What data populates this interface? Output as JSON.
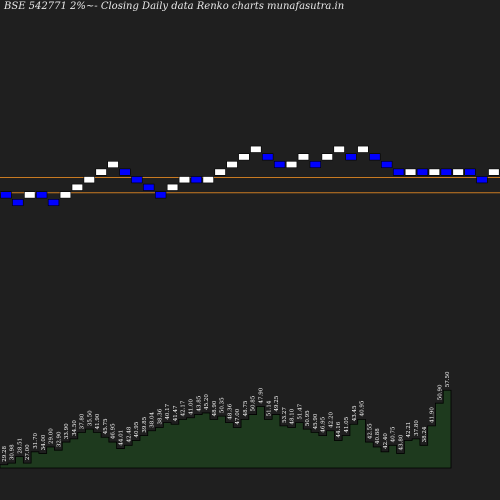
{
  "chart_data": {
    "type": "renko",
    "title": "BSE 542771 2%~- Closing Daily data  Renko  charts munafasutra.in",
    "colors": {
      "background": "#1f1f1f",
      "up_brick": "#ffffff",
      "down_brick": "#0000ff",
      "brick_edge": "#000000",
      "reference_line": "#c87a22",
      "volume_fill": "#1e3a1e",
      "volume_line": "#000000",
      "label": "#ffffff"
    },
    "reference_lines": [
      {
        "level": 0
      },
      {
        "level": -2
      }
    ],
    "bricks": [
      {
        "dir": "down",
        "level": -2
      },
      {
        "dir": "down",
        "level": -3
      },
      {
        "dir": "up",
        "level": -2
      },
      {
        "dir": "down",
        "level": -2
      },
      {
        "dir": "down",
        "level": -3
      },
      {
        "dir": "up",
        "level": -2
      },
      {
        "dir": "up",
        "level": -1
      },
      {
        "dir": "up",
        "level": 0
      },
      {
        "dir": "up",
        "level": 1
      },
      {
        "dir": "up",
        "level": 2
      },
      {
        "dir": "down",
        "level": 1
      },
      {
        "dir": "down",
        "level": 0
      },
      {
        "dir": "down",
        "level": -1
      },
      {
        "dir": "down",
        "level": -2
      },
      {
        "dir": "up",
        "level": -1
      },
      {
        "dir": "up",
        "level": 0
      },
      {
        "dir": "down",
        "level": 0
      },
      {
        "dir": "up",
        "level": 0
      },
      {
        "dir": "up",
        "level": 1
      },
      {
        "dir": "up",
        "level": 2
      },
      {
        "dir": "up",
        "level": 3
      },
      {
        "dir": "up",
        "level": 4
      },
      {
        "dir": "down",
        "level": 3
      },
      {
        "dir": "down",
        "level": 2
      },
      {
        "dir": "up",
        "level": 2
      },
      {
        "dir": "up",
        "level": 3
      },
      {
        "dir": "down",
        "level": 2
      },
      {
        "dir": "up",
        "level": 3
      },
      {
        "dir": "up",
        "level": 4
      },
      {
        "dir": "down",
        "level": 3
      },
      {
        "dir": "up",
        "level": 4
      },
      {
        "dir": "down",
        "level": 3
      },
      {
        "dir": "down",
        "level": 2
      },
      {
        "dir": "down",
        "level": 1
      },
      {
        "dir": "up",
        "level": 1
      },
      {
        "dir": "down",
        "level": 1
      },
      {
        "dir": "up",
        "level": 1
      },
      {
        "dir": "down",
        "level": 1
      },
      {
        "dir": "up",
        "level": 1
      },
      {
        "dir": "down",
        "level": 1
      },
      {
        "dir": "down",
        "level": 0
      },
      {
        "dir": "up",
        "level": 1
      },
      {
        "dir": "down",
        "level": 1
      },
      {
        "dir": "up",
        "level": 1
      },
      {
        "dir": "up",
        "level": 2
      },
      {
        "dir": "up",
        "level": 3
      },
      {
        "dir": "up",
        "level": 4
      },
      {
        "dir": "up",
        "level": 5
      }
    ],
    "volume": {
      "values": [
        2,
        3,
        7,
        3,
        10,
        9,
        13,
        11,
        16,
        18,
        22,
        24,
        22,
        19,
        16,
        12,
        14,
        17,
        20,
        23,
        25,
        28,
        27,
        30,
        31,
        33,
        34,
        30,
        32,
        28,
        25,
        30,
        33,
        38,
        30,
        33,
        26,
        25,
        28,
        24,
        22,
        20,
        23,
        17,
        20,
        27,
        30,
        16,
        13,
        10,
        14,
        9,
        17,
        18,
        14,
        26,
        40,
        48
      ],
      "labels": [
        "29.28",
        "30.98",
        "28.51",
        "27.00",
        "31.70",
        "34.00",
        "29.00",
        "32.90",
        "33.90",
        "34.50",
        "37.80",
        "35.50",
        "41.90",
        "45.75",
        "46.95",
        "44.01",
        "42.48",
        "40.95",
        "39.85",
        "38.04",
        "38.36",
        "40.17",
        "41.47",
        "42.17",
        "41.00",
        "43.85",
        "45.20",
        "48.90",
        "50.35",
        "48.36",
        "47.00",
        "48.75",
        "50.85",
        "47.90",
        "51.14",
        "49.25",
        "53.27",
        "48.10",
        "51.47",
        "50.95",
        "45.90",
        "46.95",
        "42.20",
        "44.16",
        "41.05",
        "43.45",
        "40.95",
        "42.55",
        "40.88",
        "42.40",
        "40.75",
        "43.80",
        "42.21",
        "37.80",
        "38.24",
        "41.90",
        "50.90",
        "57.50"
      ]
    }
  }
}
